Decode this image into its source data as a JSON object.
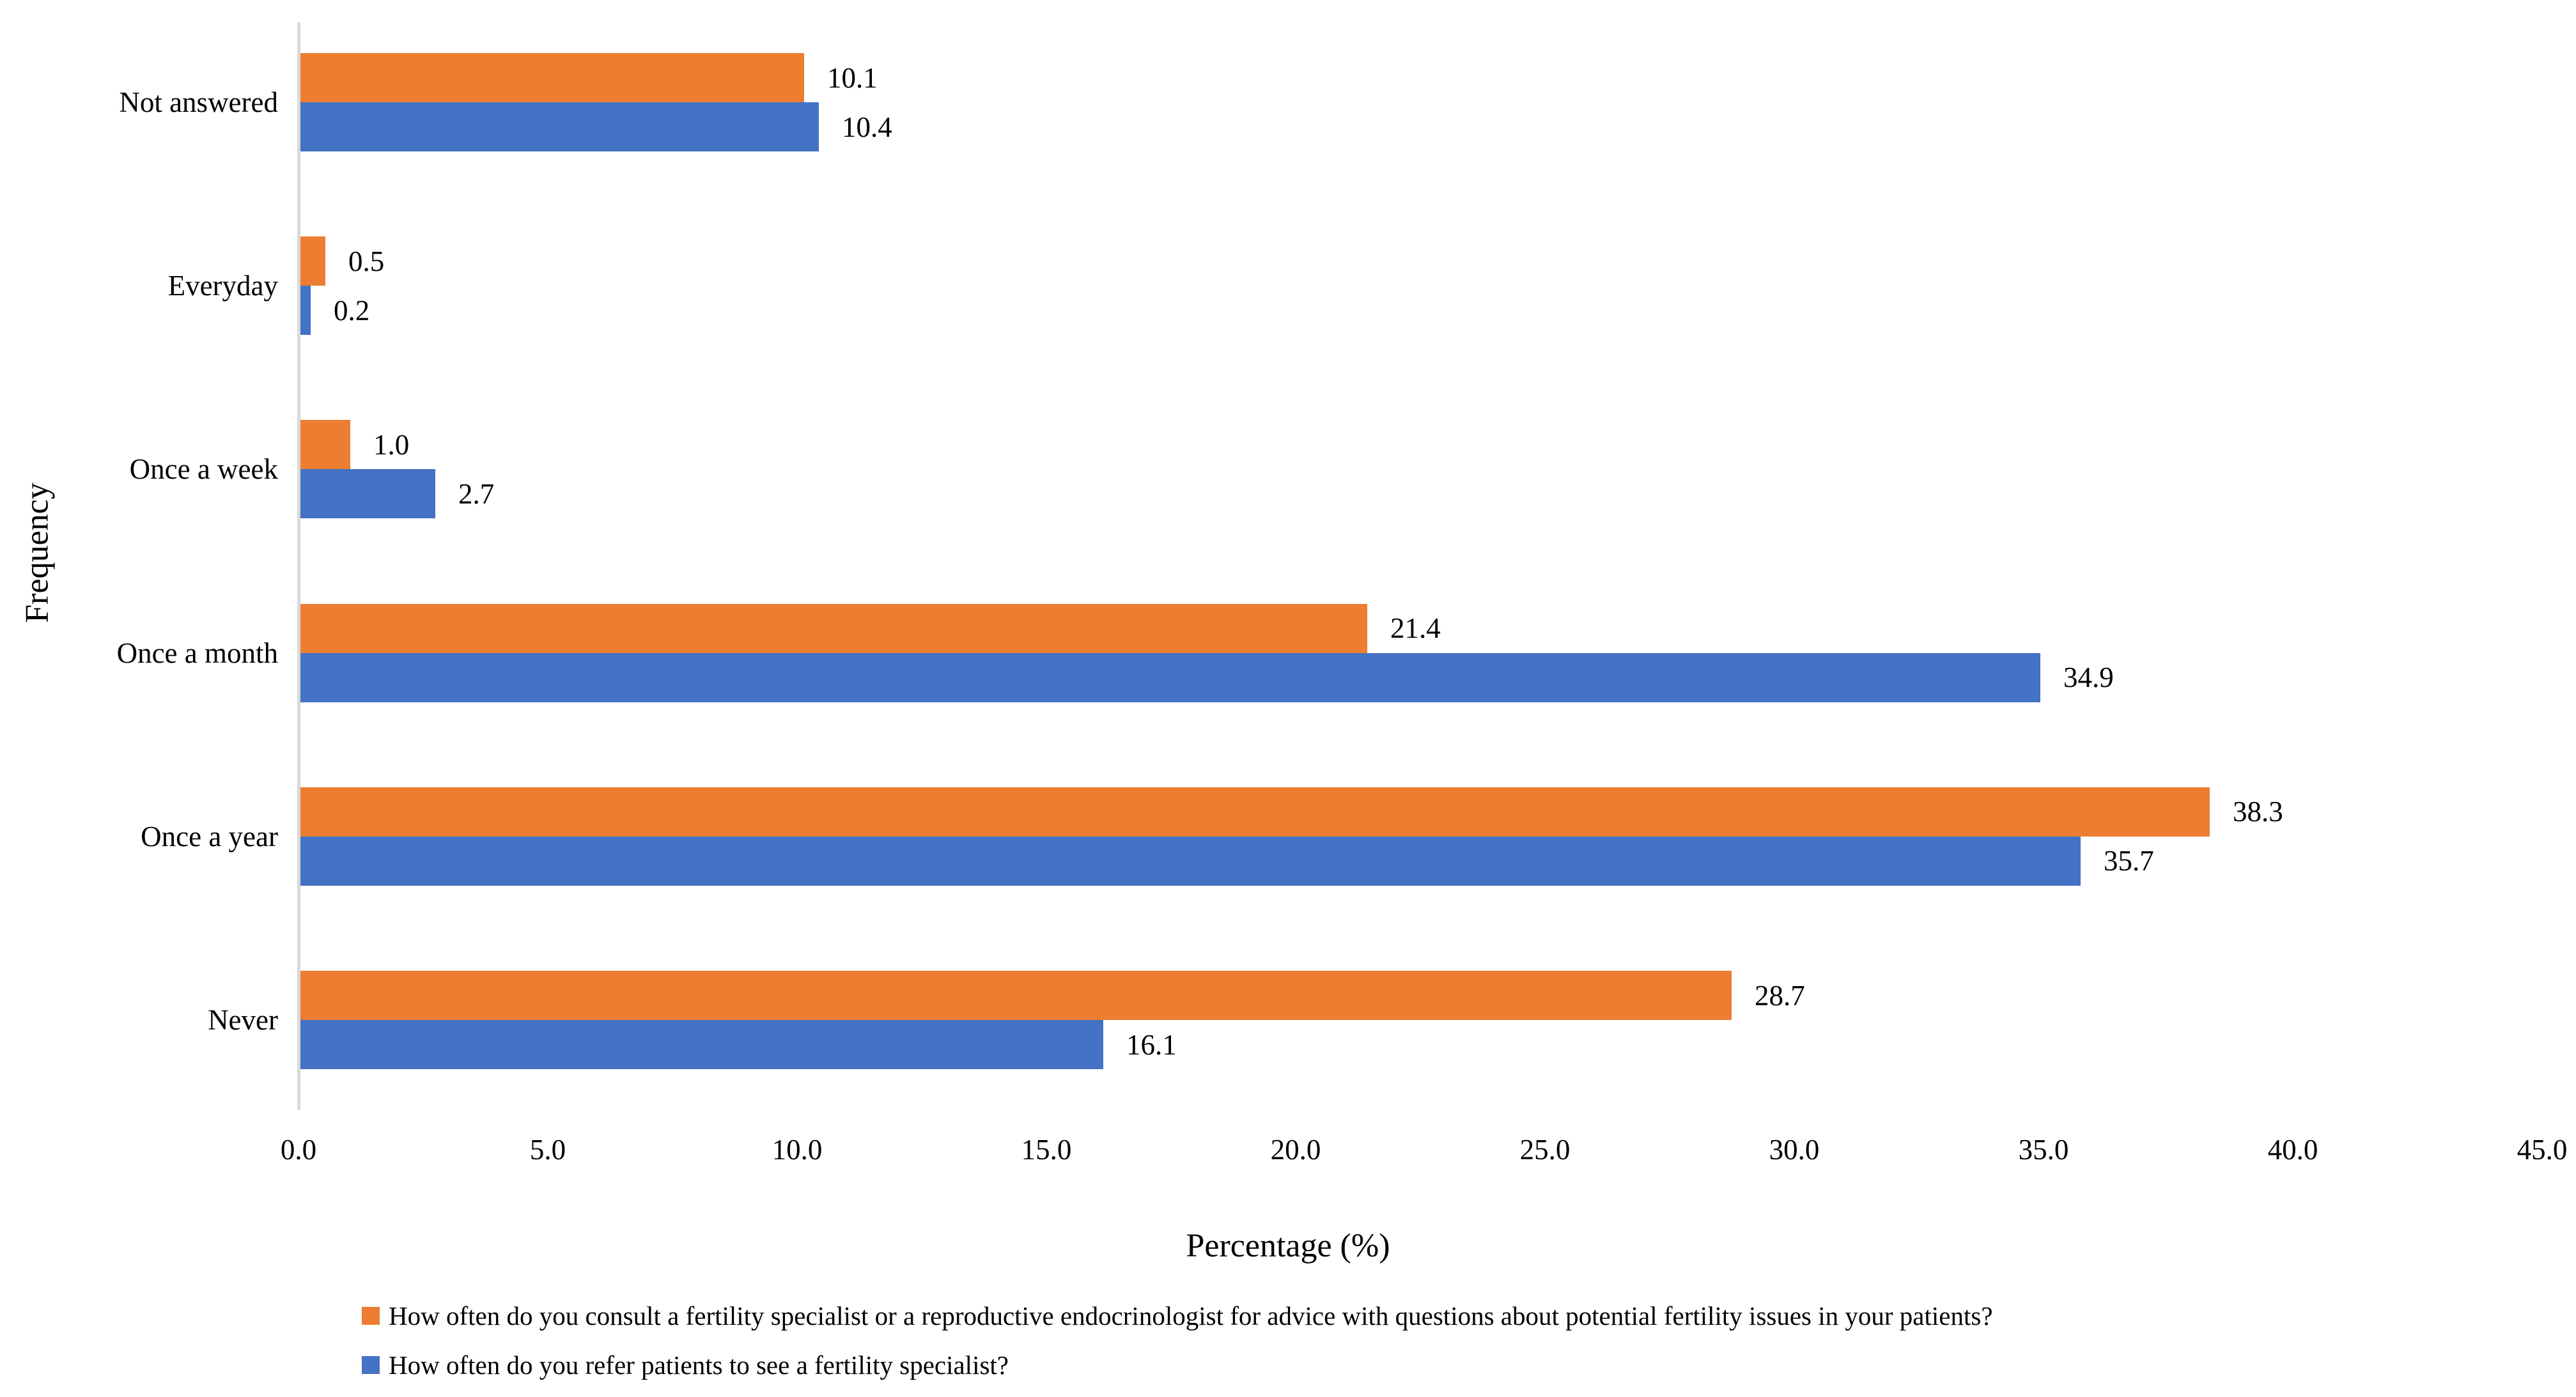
{
  "chart_data": {
    "type": "bar",
    "orientation": "horizontal",
    "title": "",
    "xlabel": "Percentage (%)",
    "ylabel": "Frequency",
    "categories": [
      "Not answered",
      "Everyday",
      "Once a week",
      "Once a month",
      "Once a year",
      "Never"
    ],
    "series": [
      {
        "name": "How often do you consult a fertility specialist or a reproductive endocrinologist for advice with questions about potential fertility issues in your patients?",
        "color": "#ED7D31",
        "values": [
          10.1,
          0.5,
          1.0,
          21.4,
          38.3,
          28.7
        ]
      },
      {
        "name": "How often do you refer patients to see a fertility specialist?",
        "color": "#4472C4",
        "values": [
          10.4,
          0.2,
          2.7,
          34.9,
          35.7,
          16.1
        ]
      }
    ],
    "xlim": [
      0,
      45
    ],
    "xticks": [
      "0.0",
      "5.0",
      "10.0",
      "15.0",
      "20.0",
      "25.0",
      "30.0",
      "35.0",
      "40.0",
      "45.0"
    ],
    "grid": false,
    "data_labels": true,
    "legend_position": "bottom-left"
  },
  "colors": {
    "axis_line": "#D9D9D9",
    "text": "#000000",
    "background": "#FFFFFF"
  }
}
